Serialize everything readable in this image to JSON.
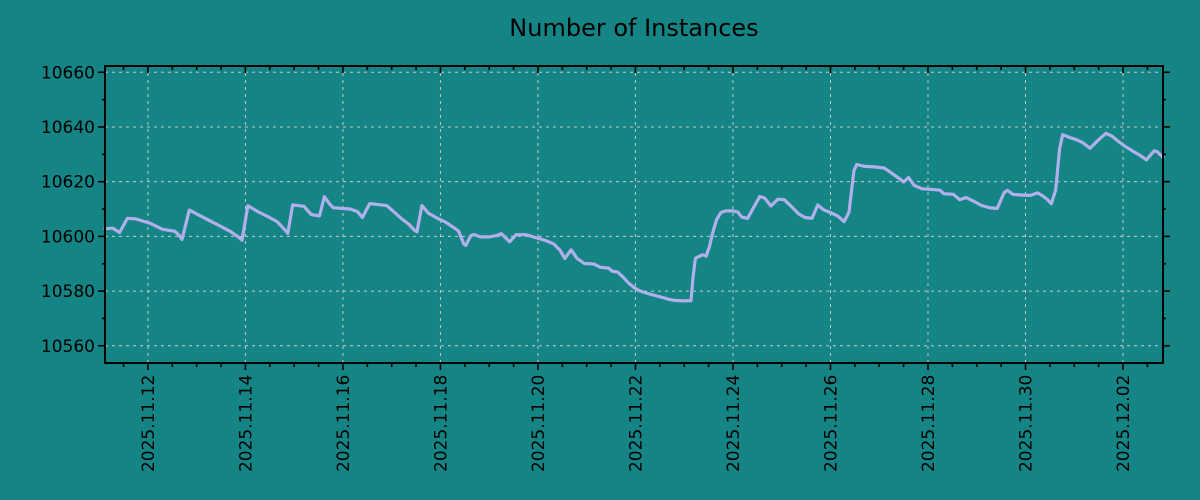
{
  "chart_data": {
    "type": "line",
    "title": "Number of Instances",
    "grid": true,
    "legend_position": "none",
    "colors": {
      "background": "#148484",
      "grid": "#c9c9c9",
      "axis": "#000000",
      "text": "#000000",
      "line": "#b2b0ec"
    },
    "x_axis": {
      "unit": "days since 2025.11.12",
      "range": [
        -0.88,
        20.82
      ],
      "tick_positions": [
        0,
        2,
        4,
        6,
        8,
        10,
        12,
        14,
        16,
        18,
        20
      ],
      "tick_labels": [
        "2025.11.12",
        "2025.11.14",
        "2025.11.16",
        "2025.11.18",
        "2025.11.20",
        "2025.11.22",
        "2025.11.24",
        "2025.11.26",
        "2025.11.28",
        "2025.11.30",
        "2025.12.02"
      ],
      "minor_tick_step": 0.5
    },
    "y_axis": {
      "range": [
        10553.7,
        10662.3
      ],
      "ticks": [
        10560,
        10580,
        10600,
        10620,
        10640,
        10660
      ],
      "tick_labels": [
        "10560",
        "10580",
        "10600",
        "10620",
        "10640",
        "10660"
      ],
      "minor_tick_step": 10
    },
    "series": [
      {
        "name": "Number of Instances",
        "color": "#b2b0ec",
        "points": [
          [
            -0.88,
            10602.8
          ],
          [
            -0.72,
            10603.0
          ],
          [
            -0.58,
            10601.4
          ],
          [
            -0.42,
            10606.6
          ],
          [
            -0.25,
            10606.4
          ],
          [
            0.05,
            10604.8
          ],
          [
            0.3,
            10602.6
          ],
          [
            0.55,
            10601.9
          ],
          [
            0.63,
            10600.6
          ],
          [
            0.7,
            10598.9
          ],
          [
            0.85,
            10609.6
          ],
          [
            1.1,
            10607.3
          ],
          [
            1.3,
            10605.4
          ],
          [
            1.5,
            10603.6
          ],
          [
            1.7,
            10601.7
          ],
          [
            1.88,
            10599.4
          ],
          [
            1.93,
            10598.6
          ],
          [
            2.05,
            10611.2
          ],
          [
            2.25,
            10609.1
          ],
          [
            2.45,
            10607.3
          ],
          [
            2.65,
            10605.4
          ],
          [
            2.83,
            10602.0
          ],
          [
            2.87,
            10601.1
          ],
          [
            2.97,
            10611.5
          ],
          [
            3.2,
            10611.0
          ],
          [
            3.35,
            10608.0
          ],
          [
            3.52,
            10607.5
          ],
          [
            3.62,
            10614.5
          ],
          [
            3.72,
            10612.0
          ],
          [
            3.8,
            10610.5
          ],
          [
            4.0,
            10610.2
          ],
          [
            4.15,
            10610.0
          ],
          [
            4.3,
            10609.0
          ],
          [
            4.4,
            10606.9
          ],
          [
            4.55,
            10612.0
          ],
          [
            4.75,
            10611.6
          ],
          [
            4.9,
            10611.2
          ],
          [
            5.05,
            10608.9
          ],
          [
            5.2,
            10606.5
          ],
          [
            5.35,
            10604.5
          ],
          [
            5.47,
            10602.2
          ],
          [
            5.52,
            10601.7
          ],
          [
            5.62,
            10611.3
          ],
          [
            5.75,
            10608.5
          ],
          [
            5.95,
            10606.5
          ],
          [
            6.1,
            10605.3
          ],
          [
            6.25,
            10603.5
          ],
          [
            6.37,
            10602.0
          ],
          [
            6.48,
            10597.2
          ],
          [
            6.52,
            10596.7
          ],
          [
            6.62,
            10600.2
          ],
          [
            6.68,
            10600.7
          ],
          [
            6.82,
            10599.8
          ],
          [
            7.0,
            10599.8
          ],
          [
            7.15,
            10600.3
          ],
          [
            7.25,
            10601.0
          ],
          [
            7.42,
            10598.0
          ],
          [
            7.55,
            10600.6
          ],
          [
            7.75,
            10600.6
          ],
          [
            7.95,
            10599.6
          ],
          [
            8.15,
            10598.5
          ],
          [
            8.32,
            10597.3
          ],
          [
            8.45,
            10595.0
          ],
          [
            8.55,
            10591.9
          ],
          [
            8.68,
            10595.1
          ],
          [
            8.8,
            10592.0
          ],
          [
            8.95,
            10590.1
          ],
          [
            9.15,
            10589.9
          ],
          [
            9.28,
            10588.7
          ],
          [
            9.45,
            10588.4
          ],
          [
            9.53,
            10587.2
          ],
          [
            9.63,
            10587.0
          ],
          [
            9.73,
            10585.4
          ],
          [
            9.85,
            10583.1
          ],
          [
            9.97,
            10581.3
          ],
          [
            10.1,
            10580.0
          ],
          [
            10.25,
            10579.1
          ],
          [
            10.4,
            10578.4
          ],
          [
            10.55,
            10577.7
          ],
          [
            10.68,
            10577.0
          ],
          [
            10.8,
            10576.6
          ],
          [
            11.0,
            10576.4
          ],
          [
            11.14,
            10576.5
          ],
          [
            11.18,
            10585.0
          ],
          [
            11.23,
            10592.0
          ],
          [
            11.3,
            10592.6
          ],
          [
            11.38,
            10593.3
          ],
          [
            11.45,
            10592.8
          ],
          [
            11.52,
            10596.5
          ],
          [
            11.58,
            10601.0
          ],
          [
            11.66,
            10606.0
          ],
          [
            11.75,
            10608.7
          ],
          [
            11.85,
            10609.3
          ],
          [
            12.0,
            10609.3
          ],
          [
            12.1,
            10608.9
          ],
          [
            12.18,
            10607.0
          ],
          [
            12.3,
            10606.6
          ],
          [
            12.42,
            10610.5
          ],
          [
            12.55,
            10614.6
          ],
          [
            12.65,
            10614.0
          ],
          [
            12.78,
            10611.1
          ],
          [
            12.92,
            10613.6
          ],
          [
            13.05,
            10613.4
          ],
          [
            13.2,
            10610.9
          ],
          [
            13.35,
            10608.2
          ],
          [
            13.48,
            10606.9
          ],
          [
            13.62,
            10606.6
          ],
          [
            13.74,
            10611.5
          ],
          [
            13.85,
            10609.8
          ],
          [
            14.0,
            10608.7
          ],
          [
            14.15,
            10607.4
          ],
          [
            14.28,
            10605.4
          ],
          [
            14.38,
            10608.8
          ],
          [
            14.48,
            10624.0
          ],
          [
            14.54,
            10626.3
          ],
          [
            14.7,
            10625.6
          ],
          [
            14.9,
            10625.4
          ],
          [
            15.1,
            10625.0
          ],
          [
            15.25,
            10623.2
          ],
          [
            15.42,
            10621.0
          ],
          [
            15.5,
            10619.9
          ],
          [
            15.6,
            10621.5
          ],
          [
            15.72,
            10618.6
          ],
          [
            15.88,
            10617.4
          ],
          [
            16.05,
            10617.2
          ],
          [
            16.25,
            10616.9
          ],
          [
            16.32,
            10615.6
          ],
          [
            16.52,
            10615.4
          ],
          [
            16.65,
            10613.4
          ],
          [
            16.78,
            10614.2
          ],
          [
            16.95,
            10612.7
          ],
          [
            17.1,
            10611.3
          ],
          [
            17.28,
            10610.4
          ],
          [
            17.42,
            10610.2
          ],
          [
            17.56,
            10616.0
          ],
          [
            17.63,
            10616.8
          ],
          [
            17.75,
            10615.3
          ],
          [
            17.95,
            10615.1
          ],
          [
            18.1,
            10615.0
          ],
          [
            18.25,
            10615.9
          ],
          [
            18.35,
            10614.8
          ],
          [
            18.45,
            10613.5
          ],
          [
            18.53,
            10611.9
          ],
          [
            18.62,
            10617.0
          ],
          [
            18.7,
            10632.0
          ],
          [
            18.76,
            10637.2
          ],
          [
            18.9,
            10636.2
          ],
          [
            19.05,
            10635.3
          ],
          [
            19.18,
            10634.2
          ],
          [
            19.32,
            10632.2
          ],
          [
            19.5,
            10635.3
          ],
          [
            19.65,
            10637.7
          ],
          [
            19.78,
            10636.6
          ],
          [
            19.92,
            10634.5
          ],
          [
            20.08,
            10632.5
          ],
          [
            20.2,
            10631.2
          ],
          [
            20.35,
            10629.6
          ],
          [
            20.48,
            10628.0
          ],
          [
            20.64,
            10631.3
          ],
          [
            20.7,
            10631.0
          ],
          [
            20.82,
            10628.9
          ]
        ]
      }
    ]
  }
}
